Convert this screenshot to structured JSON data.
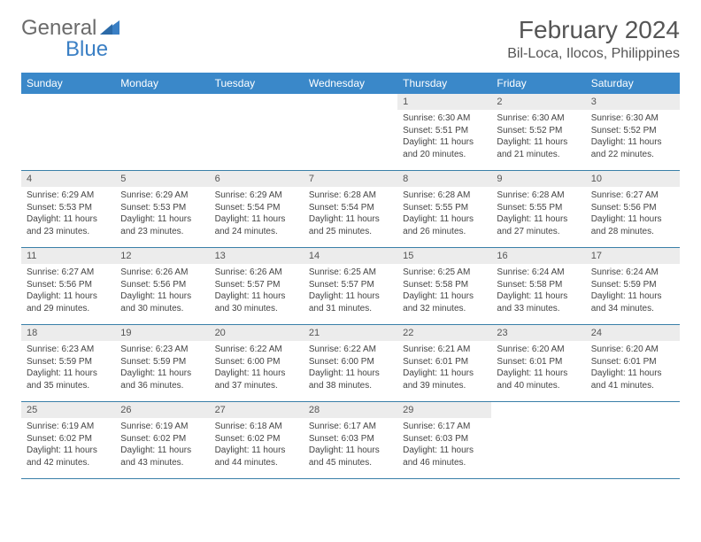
{
  "brand": {
    "part1": "General",
    "part2": "Blue"
  },
  "title": "February 2024",
  "location": "Bil-Loca, Ilocos, Philippines",
  "colors": {
    "header_bar": "#3a88c9",
    "week_divider": "#3a7fa8",
    "daynum_bg": "#ececec",
    "brand_gray": "#6b6b6b",
    "brand_blue": "#3a7fc4"
  },
  "daynames": [
    "Sunday",
    "Monday",
    "Tuesday",
    "Wednesday",
    "Thursday",
    "Friday",
    "Saturday"
  ],
  "weeks": [
    [
      null,
      null,
      null,
      null,
      {
        "n": "1",
        "sr": "Sunrise: 6:30 AM",
        "ss": "Sunset: 5:51 PM",
        "dl": "Daylight: 11 hours and 20 minutes."
      },
      {
        "n": "2",
        "sr": "Sunrise: 6:30 AM",
        "ss": "Sunset: 5:52 PM",
        "dl": "Daylight: 11 hours and 21 minutes."
      },
      {
        "n": "3",
        "sr": "Sunrise: 6:30 AM",
        "ss": "Sunset: 5:52 PM",
        "dl": "Daylight: 11 hours and 22 minutes."
      }
    ],
    [
      {
        "n": "4",
        "sr": "Sunrise: 6:29 AM",
        "ss": "Sunset: 5:53 PM",
        "dl": "Daylight: 11 hours and 23 minutes."
      },
      {
        "n": "5",
        "sr": "Sunrise: 6:29 AM",
        "ss": "Sunset: 5:53 PM",
        "dl": "Daylight: 11 hours and 23 minutes."
      },
      {
        "n": "6",
        "sr": "Sunrise: 6:29 AM",
        "ss": "Sunset: 5:54 PM",
        "dl": "Daylight: 11 hours and 24 minutes."
      },
      {
        "n": "7",
        "sr": "Sunrise: 6:28 AM",
        "ss": "Sunset: 5:54 PM",
        "dl": "Daylight: 11 hours and 25 minutes."
      },
      {
        "n": "8",
        "sr": "Sunrise: 6:28 AM",
        "ss": "Sunset: 5:55 PM",
        "dl": "Daylight: 11 hours and 26 minutes."
      },
      {
        "n": "9",
        "sr": "Sunrise: 6:28 AM",
        "ss": "Sunset: 5:55 PM",
        "dl": "Daylight: 11 hours and 27 minutes."
      },
      {
        "n": "10",
        "sr": "Sunrise: 6:27 AM",
        "ss": "Sunset: 5:56 PM",
        "dl": "Daylight: 11 hours and 28 minutes."
      }
    ],
    [
      {
        "n": "11",
        "sr": "Sunrise: 6:27 AM",
        "ss": "Sunset: 5:56 PM",
        "dl": "Daylight: 11 hours and 29 minutes."
      },
      {
        "n": "12",
        "sr": "Sunrise: 6:26 AM",
        "ss": "Sunset: 5:56 PM",
        "dl": "Daylight: 11 hours and 30 minutes."
      },
      {
        "n": "13",
        "sr": "Sunrise: 6:26 AM",
        "ss": "Sunset: 5:57 PM",
        "dl": "Daylight: 11 hours and 30 minutes."
      },
      {
        "n": "14",
        "sr": "Sunrise: 6:25 AM",
        "ss": "Sunset: 5:57 PM",
        "dl": "Daylight: 11 hours and 31 minutes."
      },
      {
        "n": "15",
        "sr": "Sunrise: 6:25 AM",
        "ss": "Sunset: 5:58 PM",
        "dl": "Daylight: 11 hours and 32 minutes."
      },
      {
        "n": "16",
        "sr": "Sunrise: 6:24 AM",
        "ss": "Sunset: 5:58 PM",
        "dl": "Daylight: 11 hours and 33 minutes."
      },
      {
        "n": "17",
        "sr": "Sunrise: 6:24 AM",
        "ss": "Sunset: 5:59 PM",
        "dl": "Daylight: 11 hours and 34 minutes."
      }
    ],
    [
      {
        "n": "18",
        "sr": "Sunrise: 6:23 AM",
        "ss": "Sunset: 5:59 PM",
        "dl": "Daylight: 11 hours and 35 minutes."
      },
      {
        "n": "19",
        "sr": "Sunrise: 6:23 AM",
        "ss": "Sunset: 5:59 PM",
        "dl": "Daylight: 11 hours and 36 minutes."
      },
      {
        "n": "20",
        "sr": "Sunrise: 6:22 AM",
        "ss": "Sunset: 6:00 PM",
        "dl": "Daylight: 11 hours and 37 minutes."
      },
      {
        "n": "21",
        "sr": "Sunrise: 6:22 AM",
        "ss": "Sunset: 6:00 PM",
        "dl": "Daylight: 11 hours and 38 minutes."
      },
      {
        "n": "22",
        "sr": "Sunrise: 6:21 AM",
        "ss": "Sunset: 6:01 PM",
        "dl": "Daylight: 11 hours and 39 minutes."
      },
      {
        "n": "23",
        "sr": "Sunrise: 6:20 AM",
        "ss": "Sunset: 6:01 PM",
        "dl": "Daylight: 11 hours and 40 minutes."
      },
      {
        "n": "24",
        "sr": "Sunrise: 6:20 AM",
        "ss": "Sunset: 6:01 PM",
        "dl": "Daylight: 11 hours and 41 minutes."
      }
    ],
    [
      {
        "n": "25",
        "sr": "Sunrise: 6:19 AM",
        "ss": "Sunset: 6:02 PM",
        "dl": "Daylight: 11 hours and 42 minutes."
      },
      {
        "n": "26",
        "sr": "Sunrise: 6:19 AM",
        "ss": "Sunset: 6:02 PM",
        "dl": "Daylight: 11 hours and 43 minutes."
      },
      {
        "n": "27",
        "sr": "Sunrise: 6:18 AM",
        "ss": "Sunset: 6:02 PM",
        "dl": "Daylight: 11 hours and 44 minutes."
      },
      {
        "n": "28",
        "sr": "Sunrise: 6:17 AM",
        "ss": "Sunset: 6:03 PM",
        "dl": "Daylight: 11 hours and 45 minutes."
      },
      {
        "n": "29",
        "sr": "Sunrise: 6:17 AM",
        "ss": "Sunset: 6:03 PM",
        "dl": "Daylight: 11 hours and 46 minutes."
      },
      null,
      null
    ]
  ]
}
